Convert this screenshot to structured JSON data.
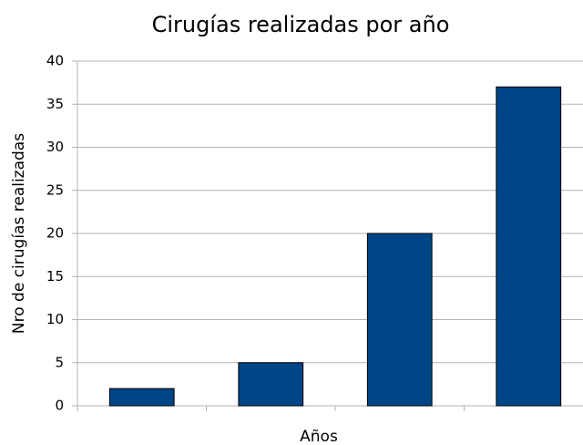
{
  "chart_data": {
    "type": "bar",
    "title": "Cirugías realizadas por año",
    "x_label": "Años",
    "y_label": "Nro de cirugías realizadas",
    "categories": [
      null,
      null,
      null,
      null
    ],
    "values": [
      2,
      5,
      20,
      37
    ],
    "color": "#004586",
    "ylim": [
      0,
      40
    ],
    "yticks": [
      0,
      5,
      10,
      15,
      20,
      25,
      30,
      35,
      40
    ],
    "grid": true
  }
}
